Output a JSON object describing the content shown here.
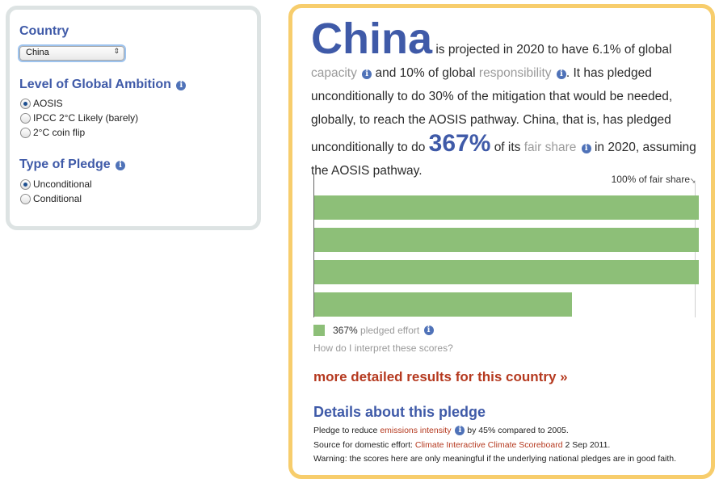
{
  "filters": {
    "country_heading": "Country",
    "country_selected": "China",
    "ambition_heading": "Level of Global Ambition",
    "ambition_options": [
      "AOSIS",
      "IPCC 2°C Likely (barely)",
      "2°C coin flip"
    ],
    "ambition_selected": 0,
    "pledge_heading": "Type of Pledge",
    "pledge_options": [
      "Unconditional",
      "Conditional"
    ],
    "pledge_selected": 0
  },
  "summary": {
    "country": "China",
    "t1": "is projected in 2020 to have 6.1% of global",
    "capacity": "capacity",
    "t2": "and 10% of global",
    "responsibility": "responsibility",
    "t3": ". It has pledged unconditionally to do 30% of the mitigation that would be needed, globally, to reach the AOSIS pathway. China, that is, has pledged unconditionally to do",
    "pct": "367%",
    "t4": "of its",
    "fair_share": "fair share",
    "t5": "in 2020, assuming the AOSIS pathway."
  },
  "chart_data": {
    "type": "bar",
    "orientation": "horizontal",
    "reference_label": "100% of fair share",
    "values_pct_of_fair_share": [
      100,
      100,
      100,
      67
    ],
    "total_pct": 367,
    "legend_value": "367%",
    "legend_label": "pledged effort",
    "color": "#8dbf78"
  },
  "help_link": "How do I interpret these scores?",
  "more_link": "more detailed results for this country »",
  "details": {
    "title": "Details about this pledge",
    "l1a": "Pledge to reduce",
    "l1_link": "emissions intensity",
    "l1b": "by 45% compared to 2005.",
    "l2a": "Source for domestic effort:",
    "l2_link": "Climate Interactive Climate Scoreboard",
    "l2b": "2 Sep 2011.",
    "l3": "Warning: the scores here are only meaningful if the underlying national pledges are in good faith."
  },
  "colors": {
    "heading": "#3f5aa8",
    "accent_link": "#b5391f",
    "panel_border_right": "#f7cd6c",
    "panel_border_left": "#dde3e3"
  }
}
